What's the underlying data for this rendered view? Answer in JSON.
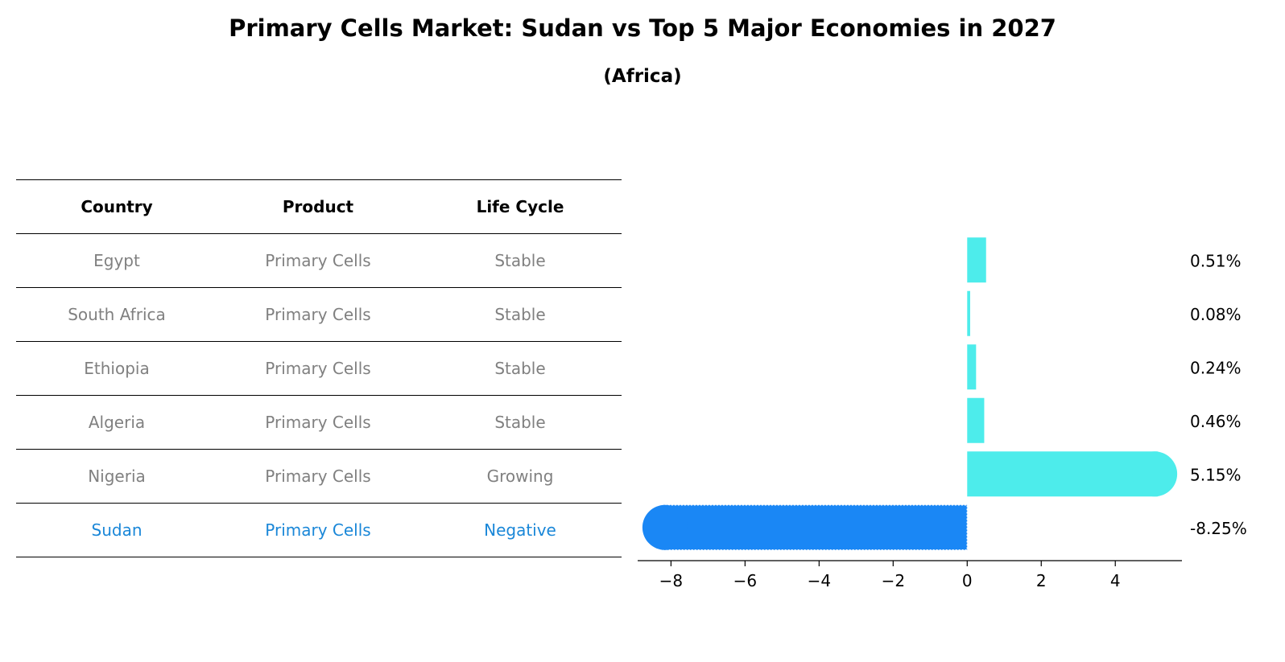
{
  "header": {
    "title": "Primary Cells Market: Sudan vs Top 5 Major Economies in 2027",
    "subtitle": "(Africa)"
  },
  "table": {
    "columns": [
      "Country",
      "Product",
      "Life Cycle"
    ],
    "rows": [
      {
        "country": "Egypt",
        "product": "Primary Cells",
        "life_cycle": "Stable"
      },
      {
        "country": "South Africa",
        "product": "Primary Cells",
        "life_cycle": "Stable"
      },
      {
        "country": "Ethiopia",
        "product": "Primary Cells",
        "life_cycle": "Stable"
      },
      {
        "country": "Algeria",
        "product": "Primary Cells",
        "life_cycle": "Stable"
      },
      {
        "country": "Nigeria",
        "product": "Primary Cells",
        "life_cycle": "Growing"
      },
      {
        "country": "Sudan",
        "product": "Primary Cells",
        "life_cycle": "Negative"
      }
    ]
  },
  "chart_data": {
    "type": "bar",
    "orientation": "horizontal",
    "categories": [
      "Egypt",
      "South Africa",
      "Ethiopia",
      "Algeria",
      "Nigeria",
      "Sudan"
    ],
    "values": [
      0.51,
      0.08,
      0.24,
      0.46,
      5.15,
      -8.25
    ],
    "data_labels": [
      "0.51%",
      "0.08%",
      "0.24%",
      "0.46%",
      "5.15%",
      "-8.25%"
    ],
    "highlight": "Sudan",
    "xlim": [
      -8.9,
      5.8
    ],
    "xticks": [
      -8,
      -6,
      -4,
      -2,
      0,
      2,
      4
    ],
    "xtick_labels": [
      "−8",
      "−6",
      "−4",
      "−2",
      "0",
      "2",
      "4"
    ],
    "xlabel": "",
    "ylabel": "",
    "colors": {
      "default": "#4deceb",
      "highlight": "#1a87f5"
    }
  }
}
